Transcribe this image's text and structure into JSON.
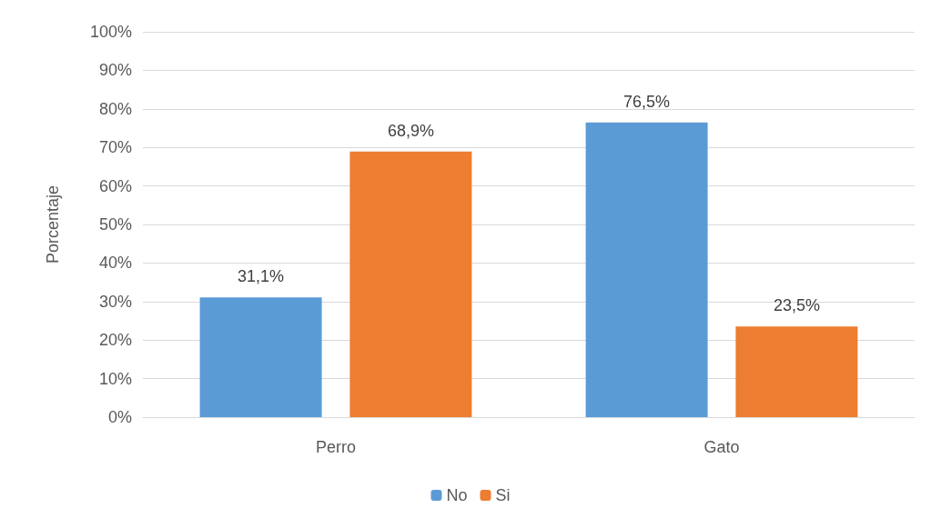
{
  "chart_data": {
    "type": "bar",
    "ylabel": "Porcentaje",
    "categories": [
      "Perro",
      "Gato"
    ],
    "series": [
      {
        "name": "No",
        "color": "#5b9bd5",
        "values": [
          31.1,
          76.5
        ],
        "value_labels": [
          "31,1%",
          "76,5%"
        ]
      },
      {
        "name": "Si",
        "color": "#ed7d31",
        "values": [
          68.9,
          23.5
        ],
        "value_labels": [
          "68,9%",
          "23,5%"
        ]
      }
    ],
    "ylim": [
      0,
      100
    ],
    "yticks": [
      {
        "value": 0,
        "label": "0%"
      },
      {
        "value": 10,
        "label": "10%"
      },
      {
        "value": 20,
        "label": "20%"
      },
      {
        "value": 30,
        "label": "30%"
      },
      {
        "value": 40,
        "label": "40%"
      },
      {
        "value": 50,
        "label": "50%"
      },
      {
        "value": 60,
        "label": "60%"
      },
      {
        "value": 70,
        "label": "70%"
      },
      {
        "value": 80,
        "label": "80%"
      },
      {
        "value": 90,
        "label": "90%"
      },
      {
        "value": 100,
        "label": "100%"
      }
    ],
    "grid": "y",
    "legend": "bottom"
  }
}
